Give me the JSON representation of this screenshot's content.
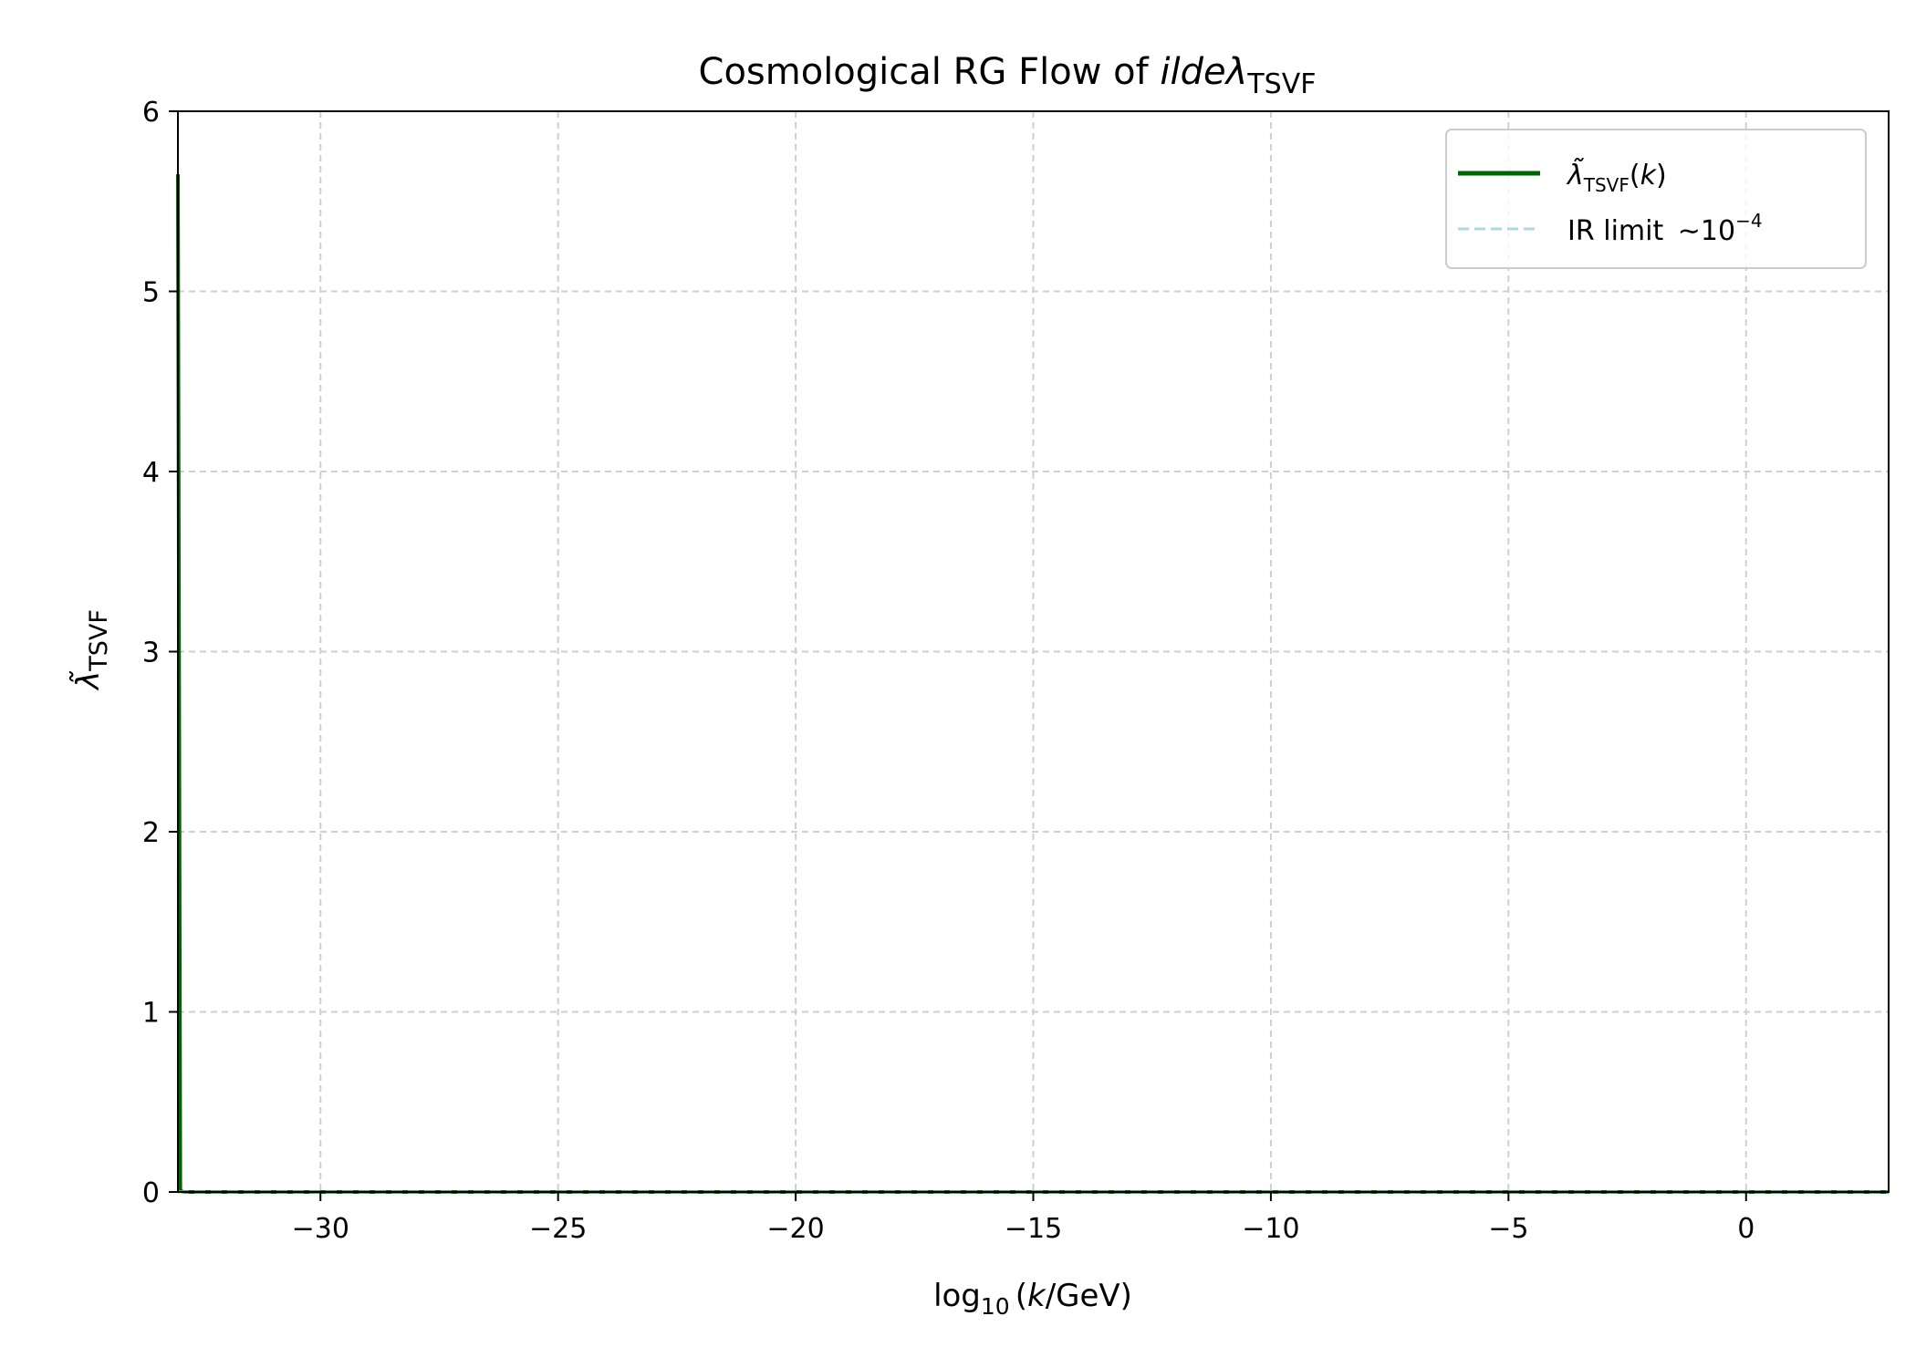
{
  "chart_data": {
    "type": "line",
    "title": {
      "prefix": "Cosmological RG Flow of ",
      "italic": "ildeλ",
      "subscript": "TSVF"
    },
    "xlabel": {
      "prefix": "log",
      "subscript": "10",
      "mid": "(",
      "italic": "k",
      "suffix": "/GeV)"
    },
    "ylabel": {
      "symbol": "λ̃",
      "subscript": "TSVF"
    },
    "xlim": [
      -33.0,
      3.0
    ],
    "ylim": [
      0,
      6
    ],
    "xticks": [
      -30,
      -25,
      -20,
      -15,
      -10,
      -5,
      0
    ],
    "xtick_labels": [
      "−30",
      "−25",
      "−20",
      "−15",
      "−10",
      "−5",
      "0"
    ],
    "yticks": [
      0,
      1,
      2,
      3,
      4,
      5,
      6
    ],
    "ytick_labels": [
      "0",
      "1",
      "2",
      "3",
      "4",
      "5",
      "6"
    ],
    "grid": true,
    "legend_position": "top-right",
    "series": [
      {
        "name": "λ̃TSVF(k)",
        "legend": {
          "symbol": "λ̃",
          "subscript": "TSVF",
          "suffix_open": "(",
          "suffix_italic": "k",
          "suffix_close": ")"
        },
        "color": "#006400",
        "style": "solid",
        "x": [
          -33.0,
          -32.95,
          -32.9,
          -32.8,
          -32.5,
          -30,
          -25,
          -20,
          -15,
          -10,
          -5,
          0,
          3.0
        ],
        "y": [
          5.65,
          0.01,
          0.0005,
          0.0002,
          0.0001,
          0.0001,
          0.0001,
          0.0001,
          0.0001,
          0.0001,
          0.0001,
          0.0001,
          0.0001
        ]
      },
      {
        "name": "IR limit ~10⁻⁴",
        "legend": {
          "prefix": "IR limit ",
          "tilde": "∼",
          "base": "10",
          "sup": "−4"
        },
        "color": "#add8e6",
        "style": "dashed",
        "x": [
          -33.0,
          3.0
        ],
        "y": [
          0.0001,
          0.0001
        ]
      }
    ]
  }
}
